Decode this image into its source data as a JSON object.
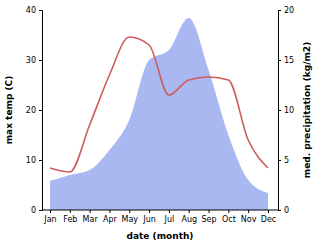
{
  "chart_data": {
    "type": "line",
    "x_label": "date (month)",
    "y_label": "max temp (C)",
    "y2_label": "med. precipitation (kg/m2)",
    "categories": [
      "Jan",
      "Feb",
      "Mar",
      "Apr",
      "May",
      "Jun",
      "Jul",
      "Aug",
      "Sep",
      "Oct",
      "Nov",
      "Dec"
    ],
    "series": [
      {
        "type": "line",
        "color": "#cd5c5c",
        "values": [
          8.4,
          7.6,
          17,
          27,
          34.6,
          33,
          23,
          26,
          26.6,
          26,
          14,
          8.4
        ]
      },
      {
        "type": "area",
        "color": "#aab8f2",
        "axis": "y2",
        "values": [
          2.9,
          3.5,
          4,
          6,
          9,
          15,
          16,
          19.2,
          14,
          7.5,
          3,
          1.7
        ]
      }
    ],
    "ylim": [
      0,
      40
    ],
    "yticks": [
      0,
      10,
      20,
      30,
      40
    ],
    "y2lim": [
      0,
      20
    ],
    "y2ticks": [
      0,
      5,
      10,
      15,
      20
    ]
  }
}
